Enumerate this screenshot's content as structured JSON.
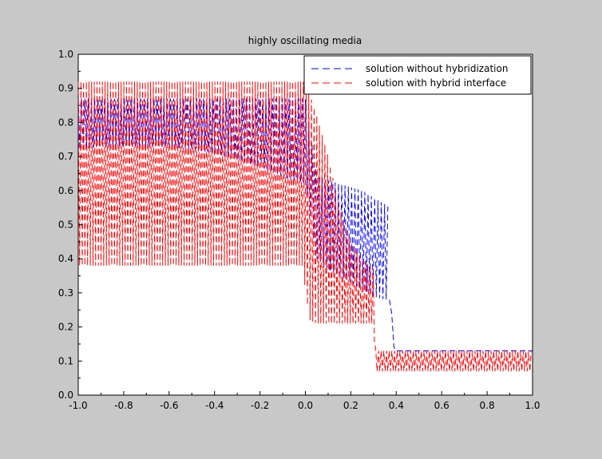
{
  "window": {
    "background": "#c8c8c8",
    "plot_background": "#ffffff"
  },
  "chart_data": {
    "type": "line",
    "title": "highly oscillating media",
    "xlabel": "",
    "ylabel": "",
    "xlim": [
      -1.0,
      1.0
    ],
    "ylim": [
      0.0,
      1.0
    ],
    "xticks": [
      "-1.0",
      "-0.8",
      "-0.6",
      "-0.4",
      "-0.2",
      "0.0",
      "0.2",
      "0.4",
      "0.6",
      "0.8",
      "1.0"
    ],
    "yticks": [
      "0.0",
      "0.1",
      "0.2",
      "0.3",
      "0.4",
      "0.5",
      "0.6",
      "0.7",
      "0.8",
      "0.9",
      "1.0"
    ],
    "grid": false,
    "legend_position": "top-right",
    "series": [
      {
        "name": "solution without hybridization",
        "color": "#0000ff",
        "line_style": "dashed",
        "envelope": {
          "x": [
            -1.0,
            -0.9,
            -0.8,
            -0.7,
            -0.6,
            -0.5,
            -0.4,
            -0.3,
            -0.2,
            -0.1,
            0.0,
            0.05,
            0.1,
            0.15,
            0.2,
            0.25,
            0.3,
            0.35,
            0.37
          ],
          "upper": [
            0.87,
            0.87,
            0.87,
            0.87,
            0.87,
            0.87,
            0.87,
            0.87,
            0.87,
            0.87,
            0.87,
            0.64,
            0.63,
            0.62,
            0.61,
            0.6,
            0.58,
            0.56,
            0.55
          ],
          "lower": [
            0.72,
            0.73,
            0.73,
            0.73,
            0.73,
            0.72,
            0.71,
            0.69,
            0.67,
            0.64,
            0.62,
            0.4,
            0.37,
            0.35,
            0.33,
            0.31,
            0.29,
            0.28,
            0.28
          ]
        },
        "tail": {
          "x": [
            0.37,
            0.38,
            0.39,
            0.4,
            1.0
          ],
          "y": [
            0.28,
            0.24,
            0.14,
            0.13,
            0.13
          ]
        }
      },
      {
        "name": "solution with hybrid interface",
        "color": "#ff0000",
        "line_style": "dashed",
        "envelope": {
          "x": [
            -1.0,
            -0.8,
            -0.6,
            -0.4,
            -0.2,
            -0.01,
            0.0,
            0.02,
            0.05,
            0.1,
            0.15,
            0.2,
            0.25,
            0.3,
            0.31,
            1.0
          ],
          "upper": [
            0.92,
            0.92,
            0.92,
            0.92,
            0.92,
            0.92,
            0.92,
            0.88,
            0.82,
            0.7,
            0.55,
            0.45,
            0.4,
            0.37,
            0.13,
            0.13
          ],
          "lower": [
            0.38,
            0.38,
            0.38,
            0.38,
            0.38,
            0.38,
            0.3,
            0.22,
            0.21,
            0.21,
            0.21,
            0.21,
            0.21,
            0.21,
            0.07,
            0.07
          ]
        }
      }
    ]
  }
}
